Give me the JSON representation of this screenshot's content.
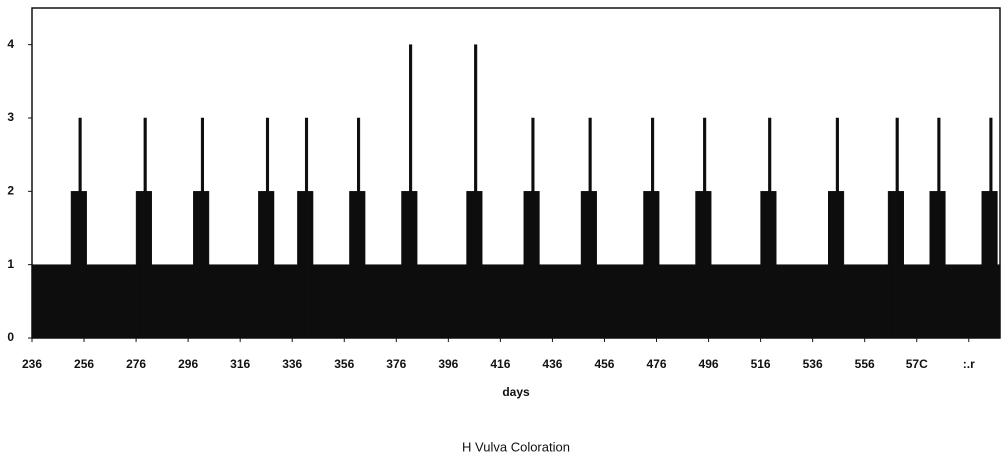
{
  "chart_data": {
    "type": "histogram",
    "x_label": "days",
    "legend_label": "H Vulva Coloration",
    "color": "#0d0d0d",
    "bins": [
      236,
      251,
      254,
      255,
      257,
      276,
      279,
      280,
      282,
      298,
      301,
      302,
      304,
      323,
      326,
      327,
      329,
      338,
      341,
      342,
      344,
      358,
      361,
      362,
      364,
      378,
      381,
      382,
      384,
      403,
      406,
      407,
      409,
      425,
      428,
      429,
      431,
      447,
      450,
      451,
      453,
      471,
      474,
      475,
      477,
      491,
      494,
      495,
      497,
      516,
      519,
      520,
      522,
      542,
      545,
      546,
      548,
      565,
      568,
      569,
      571,
      581,
      584,
      585,
      587,
      601,
      604,
      605,
      607,
      608
    ],
    "counts": [
      1,
      2,
      3,
      2,
      1,
      2,
      3,
      2,
      1,
      2,
      3,
      2,
      1,
      2,
      3,
      2,
      1,
      2,
      3,
      2,
      1,
      2,
      3,
      2,
      1,
      2,
      4,
      2,
      1,
      2,
      4,
      2,
      1,
      2,
      3,
      2,
      1,
      2,
      3,
      2,
      1,
      2,
      3,
      2,
      1,
      2,
      3,
      2,
      1,
      2,
      3,
      2,
      1,
      2,
      3,
      2,
      1,
      2,
      3,
      2,
      1,
      2,
      3,
      2,
      1,
      2,
      3,
      2,
      1
    ],
    "xlim": [
      236,
      608
    ],
    "xticks": [
      236,
      256,
      276,
      296,
      316,
      336,
      356,
      376,
      396,
      416,
      436,
      456,
      476,
      496,
      516,
      536,
      556,
      {
        "value": 576,
        "label": "57C"
      },
      {
        "value": 596,
        "label": ":.r"
      }
    ],
    "ylim": [
      0,
      4.5
    ],
    "yticks": [
      0,
      1,
      2,
      3,
      4
    ]
  }
}
